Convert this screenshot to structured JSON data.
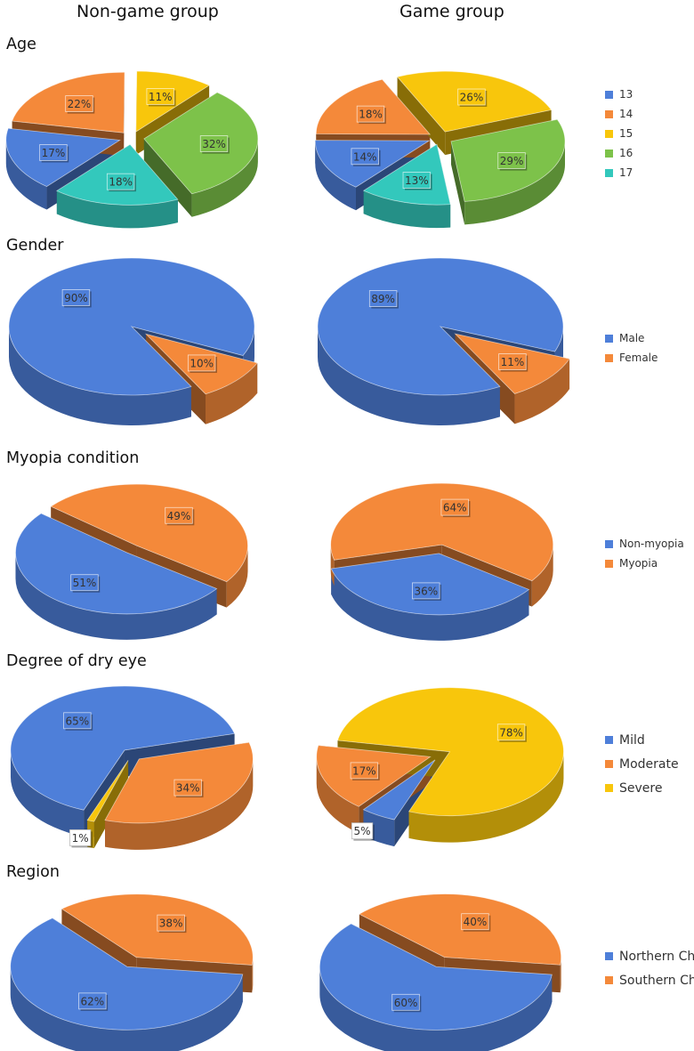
{
  "headers": {
    "left": "Non-game group",
    "right": "Game group"
  },
  "colors": {
    "blue": "#4e7fd9",
    "orange": "#f4893a",
    "yellow": "#f8c60c",
    "green": "#7dc24a",
    "teal": "#33c8bc"
  },
  "chart_data": [
    {
      "type": "pie",
      "title": "Age",
      "categories": [
        "13",
        "14",
        "15",
        "16",
        "17"
      ],
      "series": [
        {
          "name": "Non-game group",
          "values": [
            17,
            22,
            11,
            32,
            18
          ],
          "labels": [
            "17%",
            "22%",
            "11%",
            "32%",
            "18%"
          ]
        },
        {
          "name": "Game group",
          "values": [
            14,
            18,
            26,
            29,
            13
          ],
          "labels": [
            "14%",
            "18%",
            "26%",
            "29%",
            "13%"
          ]
        }
      ],
      "colors": [
        "#4e7fd9",
        "#f4893a",
        "#f8c60c",
        "#7dc24a",
        "#33c8bc"
      ],
      "legend": "right"
    },
    {
      "type": "pie",
      "title": "Gender",
      "categories": [
        "Male",
        "Female"
      ],
      "series": [
        {
          "name": "Non-game group",
          "values": [
            90,
            10
          ],
          "labels": [
            "90%",
            "10%"
          ]
        },
        {
          "name": "Game group",
          "values": [
            89,
            11
          ],
          "labels": [
            "89%",
            "11%"
          ]
        }
      ],
      "colors": [
        "#4e7fd9",
        "#f4893a"
      ],
      "legend": "right"
    },
    {
      "type": "pie",
      "title": "Myopia condition",
      "categories": [
        "Non-myopia",
        "Myopia"
      ],
      "series": [
        {
          "name": "Non-game group",
          "values": [
            51,
            49
          ],
          "labels": [
            "51%",
            "49%"
          ]
        },
        {
          "name": "Game group",
          "values": [
            36,
            64
          ],
          "labels": [
            "36%",
            "64%"
          ]
        }
      ],
      "colors": [
        "#4e7fd9",
        "#f4893a"
      ],
      "legend": "right"
    },
    {
      "type": "pie",
      "title": "Degree of dry eye",
      "categories": [
        "Mild",
        "Moderate",
        "Severe"
      ],
      "series": [
        {
          "name": "Non-game group",
          "values": [
            65,
            34,
            1
          ],
          "labels": [
            "65%",
            "34%",
            "1%"
          ]
        },
        {
          "name": "Game group",
          "values": [
            5,
            17,
            78
          ],
          "labels": [
            "5%",
            "17%",
            "78%"
          ]
        }
      ],
      "colors": [
        "#4e7fd9",
        "#f4893a",
        "#f8c60c"
      ],
      "legend": "right"
    },
    {
      "type": "pie",
      "title": "Region",
      "categories": [
        "Northern China",
        "Southern China"
      ],
      "series": [
        {
          "name": "Non-game group",
          "values": [
            62,
            38
          ],
          "labels": [
            "62%",
            "38%"
          ]
        },
        {
          "name": "Game group",
          "values": [
            60,
            40
          ],
          "labels": [
            "60%",
            "40%"
          ]
        }
      ],
      "colors": [
        "#4e7fd9",
        "#f4893a"
      ],
      "legend": "right"
    }
  ]
}
